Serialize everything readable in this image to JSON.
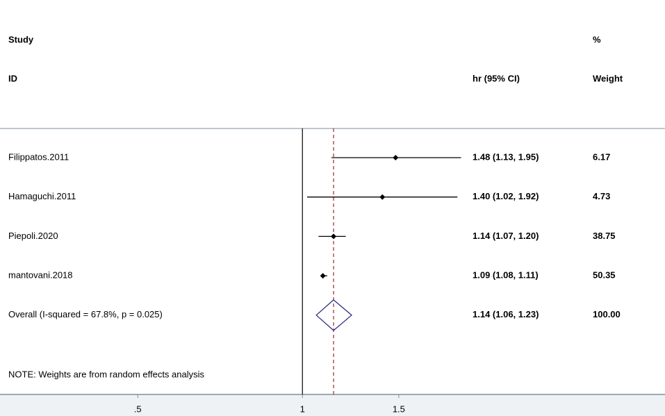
{
  "chart_data": {
    "type": "forest",
    "header": {
      "study": "Study",
      "id": "ID",
      "effect": "hr (95% CI)",
      "weight_top": "%",
      "weight": "Weight"
    },
    "categories": [
      "Filippatos.2011",
      "Hamaguchi.2011",
      "Piepoli.2020",
      "mantovani.2018"
    ],
    "values": [
      1.48,
      1.4,
      1.14,
      1.09
    ],
    "lower": [
      1.13,
      1.02,
      1.07,
      1.08
    ],
    "upper": [
      1.95,
      1.92,
      1.2,
      1.11
    ],
    "value_labels": [
      "1.48 (1.13, 1.95)",
      "1.40 (1.02, 1.92)",
      "1.14 (1.07, 1.20)",
      "1.09 (1.08, 1.11)"
    ],
    "weights": [
      6.17,
      4.73,
      38.75,
      50.35
    ],
    "overall": {
      "label": "Overall  (I-squared = 67.8%, p = 0.025)",
      "value": 1.14,
      "lower": 1.06,
      "upper": 1.23,
      "value_label": "1.14 (1.06, 1.23)",
      "weight": {
        "value": 100,
        "label": "100.00"
      }
    },
    "note": "NOTE: Weights are from random effects analysis",
    "reference": 1,
    "xscale": "log",
    "xlim": [
      0.28,
      4.6
    ],
    "xticks": [
      {
        "value": 0.5,
        "label": ".5"
      },
      1,
      1.5
    ],
    "color": "#000000",
    "overall_color": "#1f1f7a",
    "overall_line_color": "#a0282a"
  }
}
